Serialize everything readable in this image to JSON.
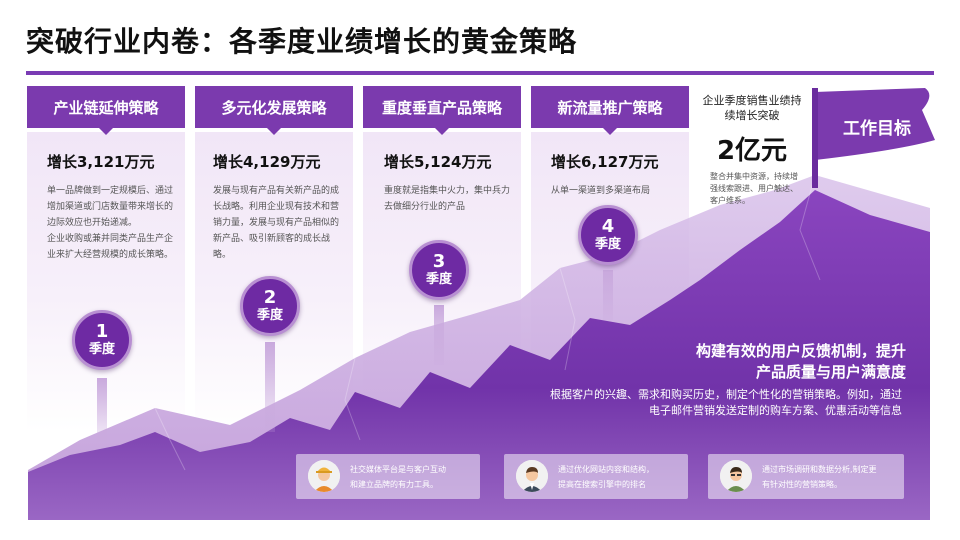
{
  "title": "突破行业内卷：各季度业绩增长的黄金策略",
  "colors": {
    "accent": "#7b3aae",
    "badge": "#6e2aa3",
    "mountain_dark": "#6f2da8",
    "mountain_light": "#c7a5de"
  },
  "quarters": [
    {
      "header": "产业链延伸策略",
      "growth": "增长3,121万元",
      "desc": [
        "单一品牌做到一定规模后、通过增加渠道或门店数量带来增长的边际效应也开始递减。",
        "企业收购或兼并同类产品生产企业来扩大经营规模的成长策略。"
      ],
      "num": "1",
      "unit": "季度"
    },
    {
      "header": "多元化发展策略",
      "growth": "增长4,129万元",
      "desc": [
        "发展与现有产品有关新产品的成长战略。利用企业现有技术和营销力量，发展与现有产品相似的新产品、吸引新顾客的成长战略。"
      ],
      "num": "2",
      "unit": "季度"
    },
    {
      "header": "重度垂直产品策略",
      "growth": "增长5,124万元",
      "desc": [
        "重度就是指集中火力，集中兵力去做细分行业的产品"
      ],
      "num": "3",
      "unit": "季度"
    },
    {
      "header": "新流量推广策略",
      "growth": "增长6,127万元",
      "desc": [
        "从单一渠道到多渠道布局"
      ],
      "num": "4",
      "unit": "季度"
    }
  ],
  "target": {
    "caption": "企业季度销售业绩持续增长突破",
    "value": "2亿元",
    "note": "整合并集中资源，持续增强线索跟进、用户触达、客户维系。",
    "flag_label": "工作目标"
  },
  "feedback": {
    "heading_line1": "构建有效的用户反馈机制，提升",
    "heading_line2": "产品质量与用户满意度",
    "text": "根据客户的兴趣、需求和购买历史，制定个性化的营销策略。例如，通过电子邮件营销发送定制的购车方案、优惠活动等信息"
  },
  "cards": [
    {
      "line1": "社交媒体平台是与客户互动",
      "line2": "和建立品牌的有力工具。",
      "icon": "worker-avatar-icon"
    },
    {
      "line1": "通过优化网站内容和结构，",
      "line2": "提高在搜索引擎中的排名",
      "icon": "businessman-avatar-icon"
    },
    {
      "line1": "通过市场调研和数据分析,制定更",
      "line2": "有针对性的营销策略。",
      "icon": "engineer-avatar-icon"
    }
  ]
}
